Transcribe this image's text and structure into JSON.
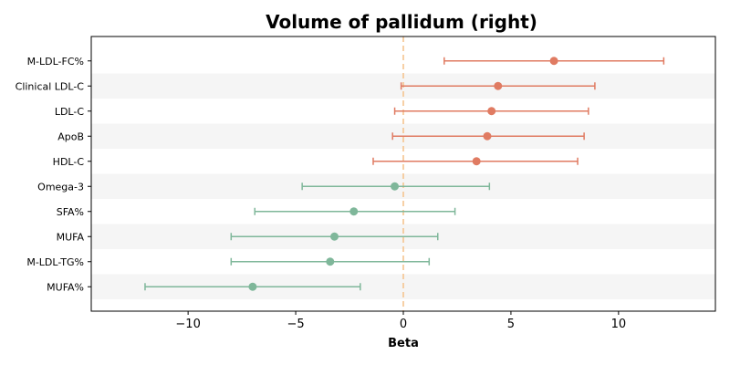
{
  "chart_data": {
    "type": "forest",
    "title": "Volume of pallidum (right)",
    "xlabel": "Beta",
    "xlim": [
      -14.5,
      14.5
    ],
    "xticks": [
      -10,
      -5,
      0,
      5,
      10
    ],
    "xtick_labels": [
      "−10",
      "−5",
      "0",
      "5",
      "10"
    ],
    "reference_line": 0,
    "colors": {
      "positive": "#e07b62",
      "negative": "#7fb79a",
      "reference_line": "#f5c48f",
      "band": "#f5f5f5"
    },
    "rows": [
      {
        "label": "M-LDL-FC%",
        "beta": 7.0,
        "ci_low": 1.9,
        "ci_high": 12.1
      },
      {
        "label": "Clinical LDL-C",
        "beta": 4.4,
        "ci_low": -0.1,
        "ci_high": 8.9
      },
      {
        "label": "LDL-C",
        "beta": 4.1,
        "ci_low": -0.4,
        "ci_high": 8.6
      },
      {
        "label": "ApoB",
        "beta": 3.9,
        "ci_low": -0.5,
        "ci_high": 8.4
      },
      {
        "label": "HDL-C",
        "beta": 3.4,
        "ci_low": -1.4,
        "ci_high": 8.1
      },
      {
        "label": "Omega-3",
        "beta": -0.4,
        "ci_low": -4.7,
        "ci_high": 4.0
      },
      {
        "label": "SFA%",
        "beta": -2.3,
        "ci_low": -6.9,
        "ci_high": 2.4
      },
      {
        "label": "MUFA",
        "beta": -3.2,
        "ci_low": -8.0,
        "ci_high": 1.6
      },
      {
        "label": "M-LDL-TG%",
        "beta": -3.4,
        "ci_low": -8.0,
        "ci_high": 1.2
      },
      {
        "label": "MUFA%",
        "beta": -7.0,
        "ci_low": -12.0,
        "ci_high": -2.0
      }
    ]
  }
}
